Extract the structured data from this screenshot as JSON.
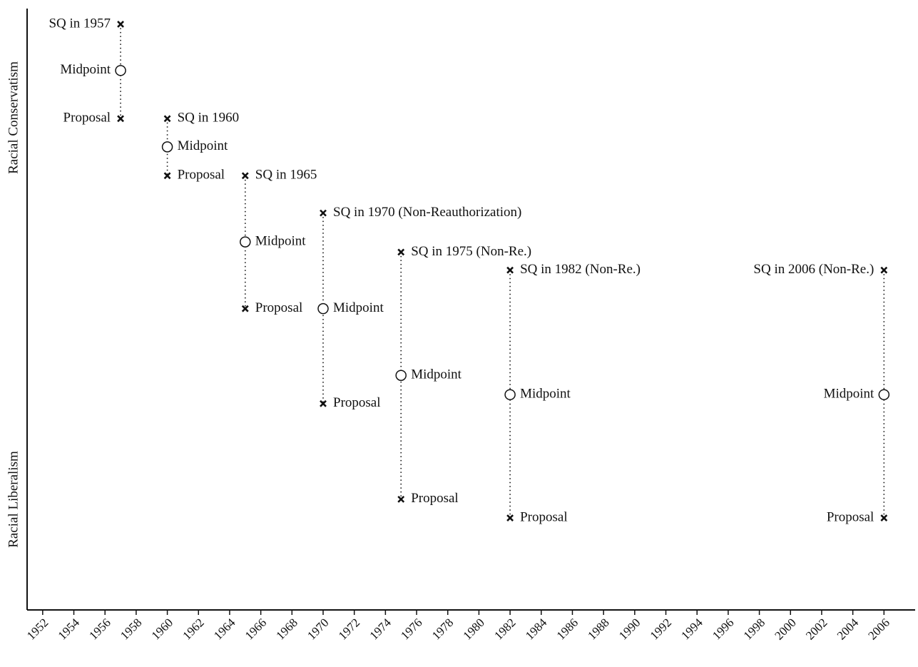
{
  "chart_data": {
    "type": "spatial",
    "y_label_top": "Racial Conservatism",
    "y_label_bottom": "Racial Liberalism",
    "x": [
      1957,
      1960,
      1965,
      1970,
      1975,
      1982,
      2006
    ],
    "status_quo": {
      "marker": "x",
      "values": [
        97.4,
        81.7,
        72.2,
        66.0,
        59.5,
        56.5,
        56.5
      ],
      "labels": [
        "SQ in 1957",
        "SQ in 1960",
        "SQ in 1965",
        "SQ in 1970 (Non-Reauthorization)",
        "SQ in 1975 (Non-Re.)",
        "SQ in 1982 (Non-Re.)",
        "SQ in 2006 (Non-Re.)"
      ]
    },
    "midpoint": {
      "marker": "circle",
      "values": [
        89.7,
        77.0,
        61.2,
        50.1,
        39.0,
        35.8,
        35.8
      ],
      "labels": [
        "Midpoint",
        "Midpoint",
        "Midpoint",
        "Midpoint",
        "Midpoint",
        "Midpoint",
        "Midpoint"
      ]
    },
    "proposal": {
      "marker": "x",
      "values": [
        81.7,
        72.2,
        50.1,
        34.3,
        18.4,
        15.3,
        15.3
      ],
      "labels": [
        "Proposal",
        "Proposal",
        "Proposal",
        "Proposal",
        "Proposal",
        "Proposal",
        "Proposal"
      ]
    },
    "xlim": [
      1951,
      2008
    ],
    "ylim": [
      0,
      100
    ],
    "xticks": [
      1952,
      1954,
      1956,
      1958,
      1960,
      1962,
      1964,
      1966,
      1968,
      1970,
      1972,
      1974,
      1976,
      1978,
      1980,
      1982,
      1984,
      1986,
      1988,
      1990,
      1992,
      1994,
      1996,
      1998,
      2000,
      2002,
      2004,
      2006
    ]
  }
}
